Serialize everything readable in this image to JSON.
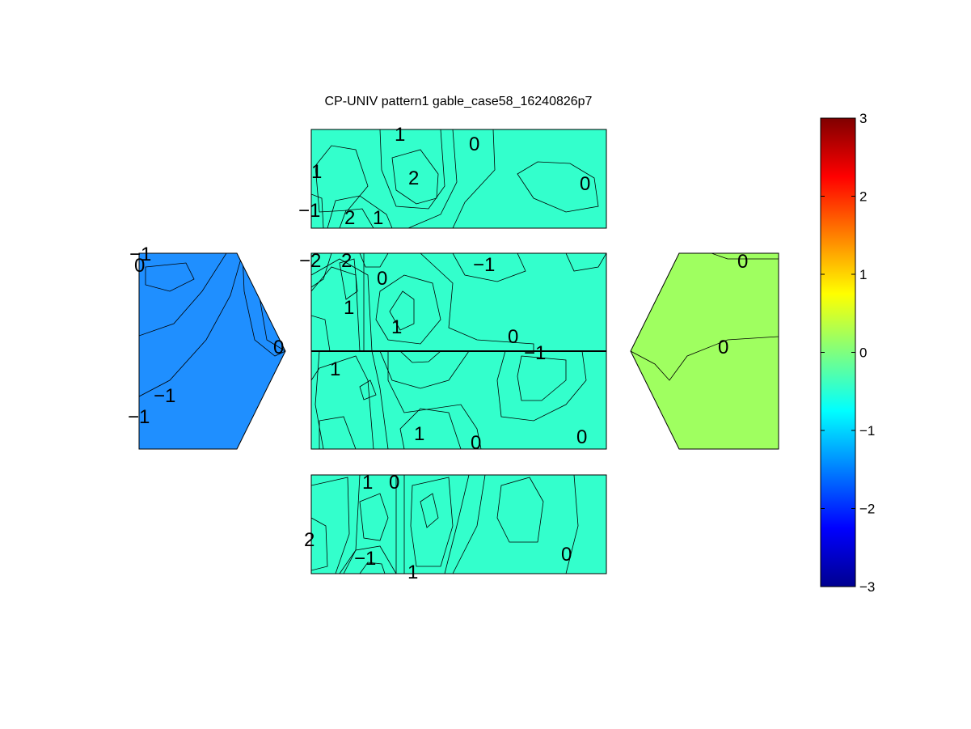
{
  "chart_data": {
    "type": "heatmap",
    "title": "CP-UNIV pattern1 gable_case58_16240826p7",
    "colormap": "jet",
    "colorbar": {
      "placement": "right",
      "range": [
        -3,
        3
      ],
      "ticks": [
        "3",
        "2",
        "1",
        "0",
        "−1",
        "−2",
        "−3"
      ]
    },
    "panels": [
      {
        "name": "top-roof-face",
        "contour_labels": [
          "1",
          "0",
          "1",
          "2",
          "0",
          "−1",
          "2",
          "1"
        ]
      },
      {
        "name": "left-gable-wall",
        "contour_labels": [
          "−1",
          "0",
          "0",
          "−1",
          "−1"
        ]
      },
      {
        "name": "center-upper-wall",
        "contour_labels": [
          "−2",
          "2",
          "−1",
          "0",
          "1",
          "1",
          "0",
          "−1"
        ]
      },
      {
        "name": "center-lower-wall",
        "contour_labels": [
          "1",
          "1",
          "0",
          "0"
        ]
      },
      {
        "name": "right-gable-wall",
        "contour_labels": [
          "0",
          "0"
        ]
      },
      {
        "name": "bottom-roof-face",
        "contour_labels": [
          "1",
          "0",
          "2",
          "−1",
          "1",
          "0"
        ]
      }
    ]
  }
}
